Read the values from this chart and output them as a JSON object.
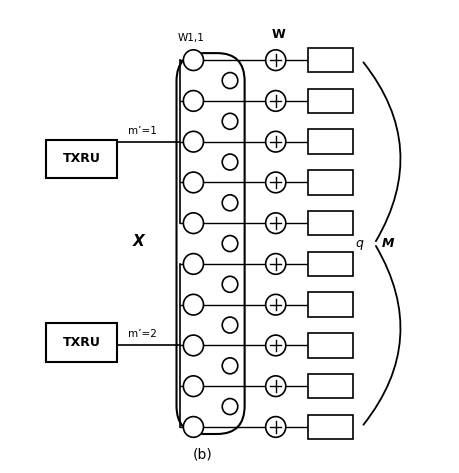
{
  "title": "(b)",
  "bg_color": "#ffffff",
  "fig_width": 4.6,
  "fig_height": 4.73,
  "dpi": 100,
  "label_W1": "W1,1",
  "label_W": "W",
  "label_X": "X",
  "label_q": "q",
  "label_M": "M",
  "label_m1": "m’=1",
  "label_m2": "m’=2",
  "label_b": "(b)"
}
